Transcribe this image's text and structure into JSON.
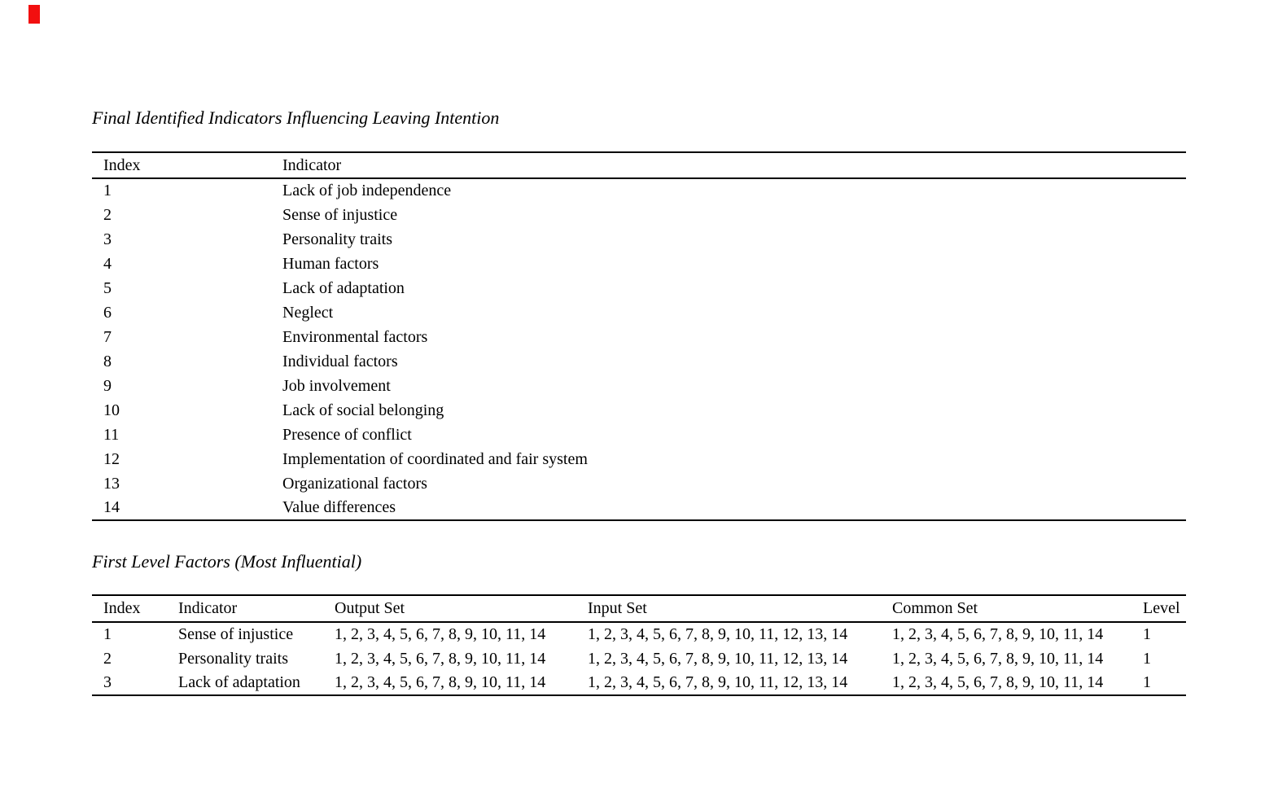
{
  "page": {
    "background": "#ffffff",
    "text_color": "#000000",
    "rule_color": "#000000"
  },
  "red_marker": {
    "color": "#f20f0f"
  },
  "indicators_table": {
    "title": "Final Identified Indicators Influencing Leaving Intention",
    "columns": [
      "Index",
      "Indicator"
    ],
    "rows": [
      {
        "index": "1",
        "indicator": "Lack of job independence"
      },
      {
        "index": "2",
        "indicator": "Sense of injustice"
      },
      {
        "index": "3",
        "indicator": "Personality traits"
      },
      {
        "index": "4",
        "indicator": "Human factors"
      },
      {
        "index": "5",
        "indicator": "Lack of adaptation"
      },
      {
        "index": "6",
        "indicator": "Neglect"
      },
      {
        "index": "7",
        "indicator": "Environmental factors"
      },
      {
        "index": "8",
        "indicator": "Individual factors"
      },
      {
        "index": "9",
        "indicator": "Job involvement"
      },
      {
        "index": "10",
        "indicator": "Lack of social belonging"
      },
      {
        "index": "11",
        "indicator": "Presence of conflict"
      },
      {
        "index": "12",
        "indicator": "Implementation of coordinated and fair system"
      },
      {
        "index": "13",
        "indicator": "Organizational factors"
      },
      {
        "index": "14",
        "indicator": "Value differences"
      }
    ]
  },
  "first_level_table": {
    "title": "First Level Factors (Most Influential)",
    "columns": [
      "Index",
      "Indicator",
      "Output Set",
      "Input Set",
      "Common Set",
      "Level"
    ],
    "rows": [
      {
        "index": "1",
        "indicator": "Sense of injustice",
        "output_set": "1, 2, 3, 4, 5, 6, 7, 8, 9, 10, 11, 14",
        "input_set": "1, 2, 3, 4, 5, 6, 7, 8, 9, 10, 11, 12, 13, 14",
        "common_set": "1, 2, 3, 4, 5, 6, 7, 8, 9, 10, 11, 14",
        "level": "1"
      },
      {
        "index": "2",
        "indicator": "Personality traits",
        "output_set": "1, 2, 3, 4, 5, 6, 7, 8, 9, 10, 11, 14",
        "input_set": "1, 2, 3, 4, 5, 6, 7, 8, 9, 10, 11, 12, 13, 14",
        "common_set": "1, 2, 3, 4, 5, 6, 7, 8, 9, 10, 11, 14",
        "level": "1"
      },
      {
        "index": "3",
        "indicator": "Lack of adaptation",
        "output_set": "1, 2, 3, 4, 5, 6, 7, 8, 9, 10, 11, 14",
        "input_set": "1, 2, 3, 4, 5, 6, 7, 8, 9, 10, 11, 12, 13, 14",
        "common_set": "1, 2, 3, 4, 5, 6, 7, 8, 9, 10, 11, 14",
        "level": "1"
      }
    ]
  }
}
